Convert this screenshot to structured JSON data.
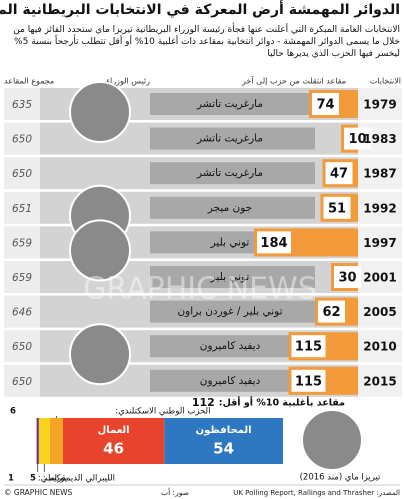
{
  "chart_data": {
    "type": "bar",
    "title": "الدوائر المهمشة أرض المعركة في الانتخابات البريطانية المبكرة",
    "subtitle": "الانتخابات العامة المبكرة التي أعلنت عنها فجأة رئيسة الوزراء البريطانية تيريزا ماي ستحدد الفائز فيها من خلال ما يسمى الدوائر المهمشة - دوائر انتخابية بمقاعد ذات أغلبية 10% أو أقل تتطلب تأرجحاً بنسبة 5% ليخسر فيها الحزب الذي يديرها حاليا",
    "headers": {
      "election": "الانتخابات",
      "seats_changed": "مقاعد انتقلت من حزب إلى آخر",
      "prime_minister": "رئيس الوزراء",
      "total_seats": "مجموع المقاعد"
    },
    "bar_color": "#f39a3a",
    "rows": [
      {
        "year": "1979",
        "seats_changed": 74,
        "prime_minister": "مارغريت تاتشر",
        "total_seats": 635
      },
      {
        "year": "1983",
        "seats_changed": 10,
        "prime_minister": "مارغريت تاتشر",
        "total_seats": 650
      },
      {
        "year": "1987",
        "seats_changed": 47,
        "prime_minister": "مارغريت تاتشر",
        "total_seats": 650
      },
      {
        "year": "1992",
        "seats_changed": 51,
        "prime_minister": "جون ميجر",
        "total_seats": 651
      },
      {
        "year": "1997",
        "seats_changed": 184,
        "prime_minister": "توني بلير",
        "total_seats": 659
      },
      {
        "year": "2001",
        "seats_changed": 30,
        "prime_minister": "توني بلير",
        "total_seats": 659
      },
      {
        "year": "2005",
        "seats_changed": 62,
        "prime_minister": "توني بلير / غوردن براون",
        "total_seats": 646
      },
      {
        "year": "2010",
        "seats_changed": 115,
        "prime_minister": "ديفيد كاميرون",
        "total_seats": 650
      },
      {
        "year": "2015",
        "seats_changed": 115,
        "prime_minister": "ديفيد كاميرون",
        "total_seats": 650
      }
    ],
    "marginal": {
      "label": "مقاعد بأغلبية 10% أو أقل:",
      "total": 112,
      "segments": [
        {
          "name": "المحافظون",
          "value": 54,
          "color": "#2e78c2"
        },
        {
          "name": "العمال",
          "value": 46,
          "color": "#e8432d"
        },
        {
          "name": "الحزب الوطني الاسكتلندي:",
          "value": 6,
          "color": "#f5a524"
        },
        {
          "name": "الليبرالي الديمقراطي:",
          "value": 5,
          "color": "#f8d31b"
        },
        {
          "name": "يوكيب:",
          "value": 1,
          "color": "#7b2a83"
        }
      ]
    },
    "may_caption": "تيريزا ماي (منذ 2016)",
    "watermark": "GRAPHIC NEWS",
    "footer": {
      "copyright": "© GRAPHIC NEWS",
      "photos": "صور: أب",
      "source": "المصدر: UK Polling Report, Rallings and Thrasher"
    }
  }
}
